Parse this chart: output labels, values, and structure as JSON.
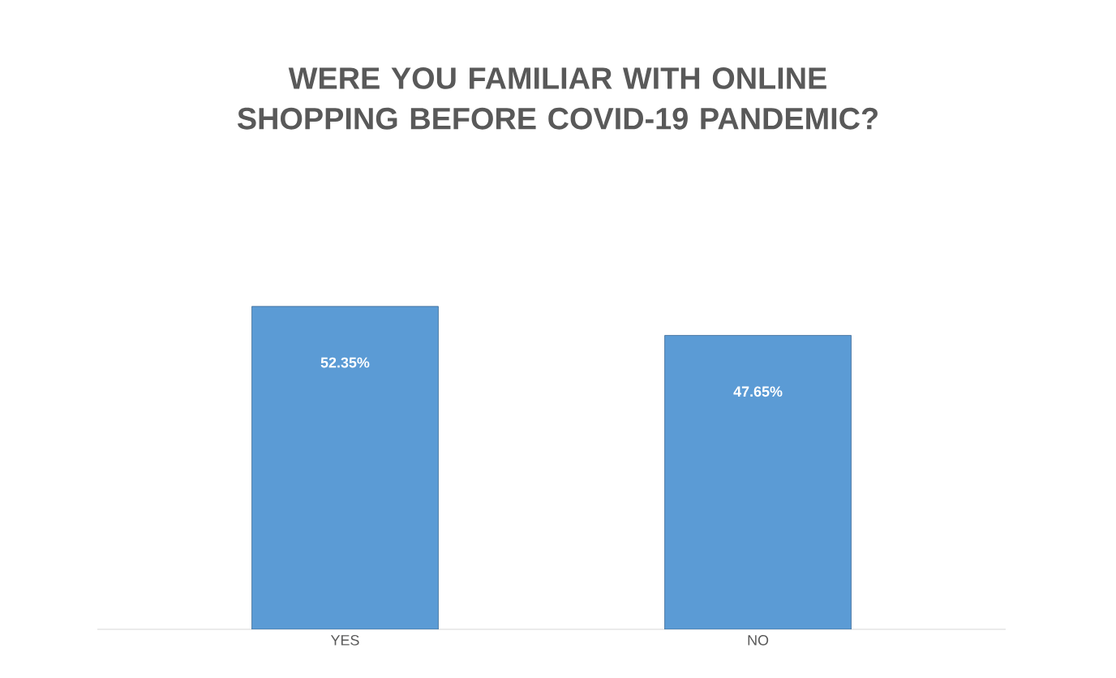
{
  "chart_data": {
    "type": "bar",
    "title": "WERE YOU FAMILIAR WITH ONLINE SHOPPING BEFORE COVID-19 PANDEMIC?",
    "categories": [
      "YES",
      "NO"
    ],
    "values": [
      52.35,
      47.65
    ],
    "value_labels": [
      "52.35%",
      "47.65%"
    ],
    "color": "#5b9bd5"
  }
}
